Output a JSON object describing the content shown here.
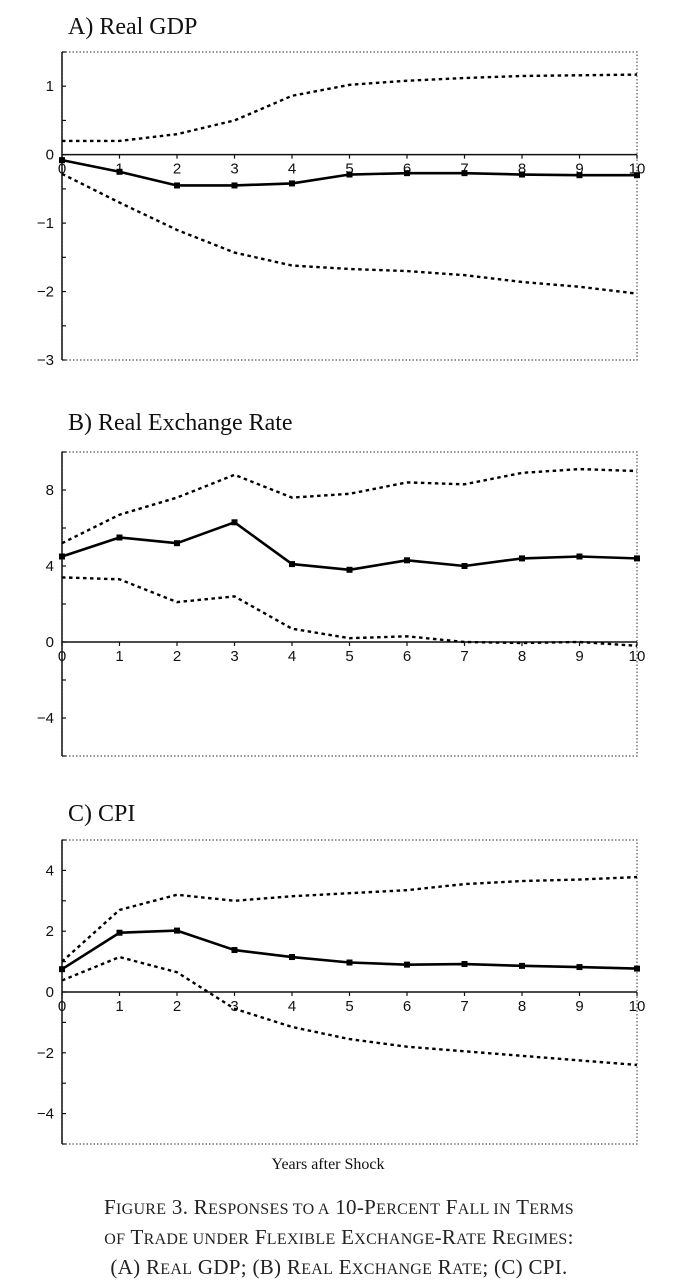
{
  "figure": {
    "xlabel": "Years after Shock",
    "caption_lines": [
      [
        [
          "F",
          ""
        ],
        [
          "IGURE",
          "sc"
        ],
        [
          " 3. R",
          ""
        ],
        [
          "ESPONSES TO A",
          "sc"
        ],
        [
          " 10-P",
          ""
        ],
        [
          "ERCENT",
          "sc"
        ],
        [
          " F",
          ""
        ],
        [
          "ALL IN",
          "sc"
        ],
        [
          " T",
          ""
        ],
        [
          "ERMS",
          "sc"
        ]
      ],
      [
        [
          "OF",
          "sc"
        ],
        [
          " T",
          ""
        ],
        [
          "RADE UNDER",
          "sc"
        ],
        [
          " F",
          ""
        ],
        [
          "LEXIBLE",
          "sc"
        ],
        [
          " E",
          ""
        ],
        [
          "XCHANGE",
          "sc"
        ],
        [
          "-R",
          ""
        ],
        [
          "ATE",
          "sc"
        ],
        [
          " R",
          ""
        ],
        [
          "EGIMES",
          "sc"
        ],
        [
          ":",
          ""
        ]
      ],
      [
        [
          "(A) R",
          ""
        ],
        [
          "EAL",
          "sc"
        ],
        [
          " GDP; (B) R",
          ""
        ],
        [
          "EAL",
          "sc"
        ],
        [
          " E",
          ""
        ],
        [
          "XCHANGE",
          "sc"
        ],
        [
          " R",
          ""
        ],
        [
          "ATE",
          "sc"
        ],
        [
          "; (C) CPI.",
          ""
        ]
      ]
    ]
  },
  "chart_data": [
    {
      "type": "line",
      "title": "A)  Real GDP",
      "x": [
        0,
        1,
        2,
        3,
        4,
        5,
        6,
        7,
        8,
        9,
        10
      ],
      "ylim": [
        -3,
        1.5
      ],
      "yticks": [
        1,
        0,
        -1,
        -2,
        -3
      ],
      "xticks": [
        0,
        1,
        2,
        3,
        4,
        5,
        6,
        7,
        8,
        9,
        10
      ],
      "series": [
        {
          "values": [
            -0.08,
            -0.25,
            -0.45,
            -0.45,
            -0.42,
            -0.29,
            -0.27,
            -0.27,
            -0.29,
            -0.3,
            -0.3
          ],
          "style": "solid"
        },
        {
          "values": [
            0.2,
            0.2,
            0.3,
            0.5,
            0.86,
            1.02,
            1.08,
            1.12,
            1.15,
            1.16,
            1.17
          ],
          "style": "dotted"
        },
        {
          "values": [
            -0.28,
            -0.7,
            -1.1,
            -1.43,
            -1.62,
            -1.67,
            -1.7,
            -1.76,
            -1.86,
            -1.93,
            -2.03
          ],
          "style": "dotted"
        }
      ]
    },
    {
      "type": "line",
      "title": "B)  Real Exchange Rate",
      "x": [
        0,
        1,
        2,
        3,
        4,
        5,
        6,
        7,
        8,
        9,
        10
      ],
      "ylim": [
        -6,
        10
      ],
      "yticks": [
        8,
        4,
        0,
        -4
      ],
      "xticks": [
        0,
        1,
        2,
        3,
        4,
        5,
        6,
        7,
        8,
        9,
        10
      ],
      "series": [
        {
          "values": [
            4.5,
            5.5,
            5.2,
            6.3,
            4.1,
            3.8,
            4.3,
            4.0,
            4.4,
            4.5,
            4.4
          ],
          "style": "solid"
        },
        {
          "values": [
            5.2,
            6.7,
            7.6,
            8.8,
            7.6,
            7.8,
            8.4,
            8.3,
            8.9,
            9.1,
            9.0
          ],
          "style": "dotted"
        },
        {
          "values": [
            3.4,
            3.3,
            2.1,
            2.4,
            0.7,
            0.2,
            0.3,
            0.0,
            -0.05,
            0.0,
            -0.2
          ],
          "style": "dotted"
        }
      ]
    },
    {
      "type": "line",
      "title": "C)  CPI",
      "x": [
        0,
        1,
        2,
        3,
        4,
        5,
        6,
        7,
        8,
        9,
        10
      ],
      "ylim": [
        -5,
        5
      ],
      "yticks": [
        4,
        2,
        0,
        -2,
        -4
      ],
      "xticks": [
        0,
        1,
        2,
        3,
        4,
        5,
        6,
        7,
        8,
        9,
        10
      ],
      "series": [
        {
          "values": [
            0.75,
            1.95,
            2.02,
            1.38,
            1.15,
            0.97,
            0.9,
            0.92,
            0.86,
            0.82,
            0.77
          ],
          "style": "solid"
        },
        {
          "values": [
            1.0,
            2.7,
            3.2,
            3.0,
            3.15,
            3.25,
            3.35,
            3.55,
            3.65,
            3.7,
            3.78
          ],
          "style": "dotted"
        },
        {
          "values": [
            0.38,
            1.15,
            0.65,
            -0.55,
            -1.15,
            -1.55,
            -1.8,
            -1.95,
            -2.1,
            -2.25,
            -2.4
          ],
          "style": "dotted"
        }
      ]
    }
  ]
}
